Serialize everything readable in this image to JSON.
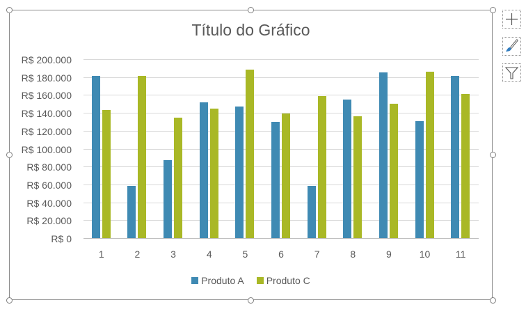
{
  "chart_data": {
    "type": "bar",
    "title": "Título do Gráfico",
    "xlabel": "",
    "ylabel": "",
    "categories": [
      "1",
      "2",
      "3",
      "4",
      "5",
      "6",
      "7",
      "8",
      "9",
      "10",
      "11"
    ],
    "series": [
      {
        "name": "Produto A",
        "color": "#3f8ab3",
        "values": [
          181000,
          58000,
          87000,
          152000,
          147000,
          130000,
          58000,
          155000,
          185000,
          131000,
          181000
        ]
      },
      {
        "name": "Produto C",
        "color": "#a9b826",
        "values": [
          143000,
          181000,
          135000,
          145000,
          188000,
          139000,
          159000,
          136000,
          150000,
          186000,
          161000
        ]
      }
    ],
    "ylim": [
      0,
      200000
    ],
    "yticks": [
      "R$ 0",
      "R$ 20.000",
      "R$ 40.000",
      "R$ 60.000",
      "R$ 80.000",
      "R$ 100.000",
      "R$ 120.000",
      "R$ 140.000",
      "R$ 160.000",
      "R$ 180.000",
      "R$ 200.000"
    ],
    "grid": true,
    "legend_position": "bottom"
  },
  "side_buttons": {
    "add": "chart-elements",
    "style": "chart-styles",
    "filter": "chart-filters"
  }
}
